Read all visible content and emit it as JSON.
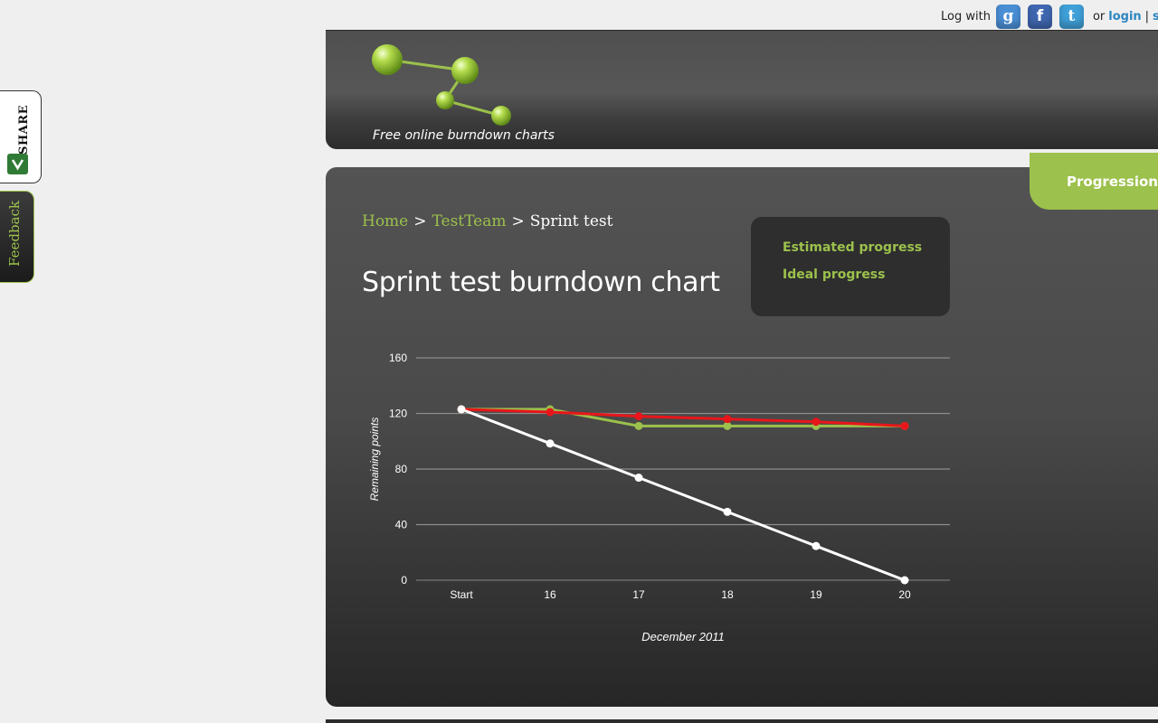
{
  "login": {
    "prefix": "Log with",
    "providers": [
      {
        "name": "Google",
        "glyph": "g"
      },
      {
        "name": "Facebook",
        "glyph": "f"
      },
      {
        "name": "Twitter",
        "glyph": "t"
      }
    ],
    "or": "or",
    "login_label": "login",
    "separator": "|",
    "signup_label": "sig"
  },
  "header": {
    "tagline": "Free online burndown charts"
  },
  "tab": {
    "label": "Progression"
  },
  "breadcrumb": {
    "home": "Home",
    "sep": ">",
    "team": "TestTeam",
    "current": "Sprint test"
  },
  "page_title": "Sprint test burndown chart",
  "legend": {
    "estimated": "Estimated progress",
    "ideal": "Ideal progress"
  },
  "side": {
    "share": "SHARE",
    "feedback": "Feedback"
  },
  "colors": {
    "accent_green": "#9cc14c",
    "estimated": "#9cc14c",
    "actual": "#e8161a",
    "ideal": "#ffffff"
  },
  "chart_data": {
    "type": "line",
    "categories": [
      "Start",
      "16",
      "17",
      "18",
      "19",
      "20"
    ],
    "ylabel": "Remaining points",
    "xlabel": "December 2011",
    "ylim": [
      0,
      160
    ],
    "yticks": [
      0,
      40,
      80,
      120,
      160
    ],
    "grid": true,
    "series": [
      {
        "color": "#9cc14c",
        "values": [
          123,
          123,
          111,
          111,
          111,
          111
        ]
      },
      {
        "color": "#e8161a",
        "values": [
          123,
          121,
          118,
          116,
          114,
          111
        ]
      },
      {
        "color": "#ffffff",
        "values": [
          123,
          98.4,
          73.8,
          49.2,
          24.6,
          0
        ]
      }
    ]
  }
}
